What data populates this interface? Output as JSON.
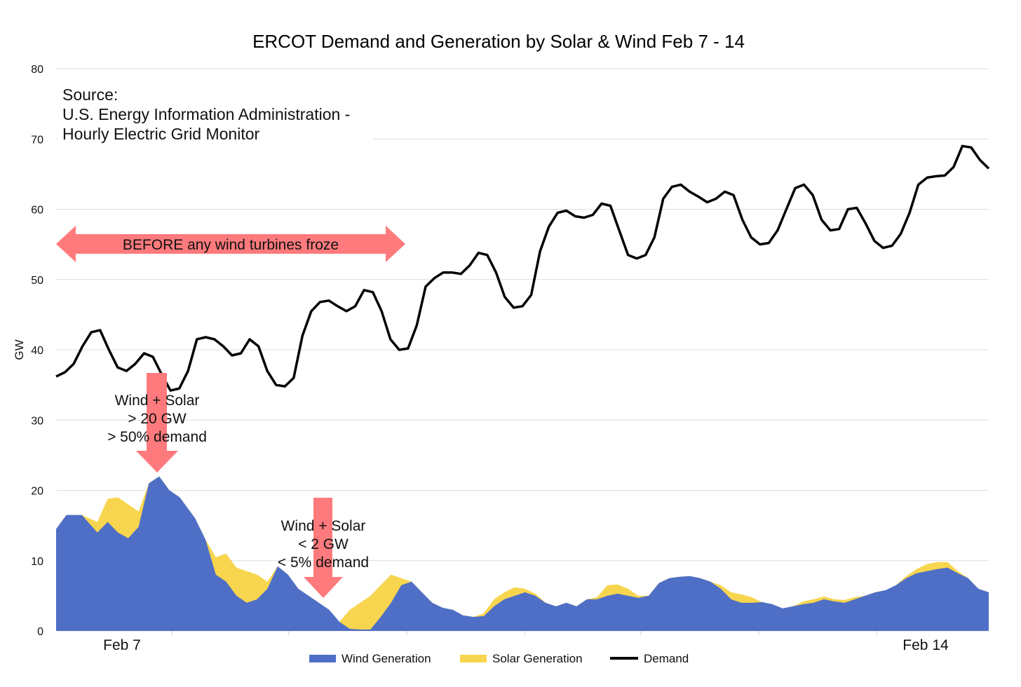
{
  "colors": {
    "wind": "#4F6FC6",
    "solar": "#F7D54E",
    "demand": "#000000",
    "arrow": "#FF7A7D",
    "grid": "#DCDCDC"
  },
  "chart_data": {
    "type": "area",
    "title": "ERCOT Demand and Generation by Solar & Wind Feb 7 - 14",
    "xlabel": "",
    "ylabel": "GW",
    "ylim": [
      0,
      80
    ],
    "yticks": [
      0,
      10,
      20,
      30,
      40,
      50,
      60,
      70,
      80
    ],
    "grid": true,
    "legend_position": "bottom",
    "x_tick_labels": [
      {
        "label": "Feb 7",
        "hour": 10
      },
      {
        "label": "Feb 14",
        "hour": 143
      }
    ],
    "x_hours": [
      0,
      159
    ],
    "series": [
      {
        "name": "Wind Generation",
        "kind": "area",
        "points": [
          [
            0,
            14.5
          ],
          [
            2,
            16.5
          ],
          [
            5,
            16.5
          ],
          [
            8,
            14
          ],
          [
            10,
            15.5
          ],
          [
            12,
            14
          ],
          [
            14,
            13.2
          ],
          [
            16,
            14.8
          ],
          [
            18,
            21
          ],
          [
            20,
            22
          ],
          [
            22,
            20
          ],
          [
            24,
            19
          ],
          [
            27,
            16
          ],
          [
            29,
            13
          ],
          [
            31,
            8
          ],
          [
            33,
            7
          ],
          [
            35,
            5
          ],
          [
            37,
            4
          ],
          [
            39,
            4.5
          ],
          [
            41,
            6
          ],
          [
            43,
            9.2
          ],
          [
            45,
            8
          ],
          [
            47,
            6
          ],
          [
            49,
            5
          ],
          [
            51,
            4
          ],
          [
            53,
            3
          ],
          [
            55,
            1.3
          ],
          [
            57,
            0.3
          ],
          [
            59,
            0.2
          ],
          [
            61,
            0.2
          ],
          [
            63,
            2
          ],
          [
            65,
            4
          ],
          [
            67,
            6.5
          ],
          [
            69,
            7
          ],
          [
            71,
            5.5
          ],
          [
            73,
            4
          ],
          [
            75,
            3.3
          ],
          [
            77,
            3
          ],
          [
            79,
            2.2
          ],
          [
            81,
            2
          ],
          [
            83,
            2.1
          ],
          [
            85,
            3.5
          ],
          [
            87,
            4.5
          ],
          [
            89,
            5
          ],
          [
            91,
            5.5
          ],
          [
            93,
            5
          ],
          [
            95,
            4
          ],
          [
            97,
            3.5
          ],
          [
            99,
            4
          ],
          [
            101,
            3.5
          ],
          [
            103,
            4.5
          ],
          [
            105,
            4.5
          ],
          [
            107,
            5
          ],
          [
            109,
            5.3
          ],
          [
            111,
            5
          ],
          [
            113,
            4.7
          ],
          [
            115,
            5
          ],
          [
            117,
            6.8
          ],
          [
            119,
            7.5
          ],
          [
            121,
            7.7
          ],
          [
            123,
            7.8
          ],
          [
            125,
            7.5
          ],
          [
            127,
            7
          ],
          [
            129,
            6
          ],
          [
            131,
            4.5
          ],
          [
            133,
            4
          ],
          [
            135,
            4
          ],
          [
            137,
            4.1
          ],
          [
            139,
            3.8
          ],
          [
            141,
            3.2
          ],
          [
            143,
            3.5
          ],
          [
            145,
            3.8
          ],
          [
            147,
            4
          ],
          [
            149,
            4.5
          ],
          [
            151,
            4.2
          ],
          [
            153,
            4
          ],
          [
            155,
            4.5
          ],
          [
            157,
            5
          ],
          [
            159,
            5.5
          ],
          [
            161,
            5.8
          ],
          [
            163,
            6.5
          ],
          [
            165,
            7.5
          ],
          [
            167,
            8.2
          ],
          [
            169,
            8.5
          ],
          [
            171,
            8.8
          ],
          [
            173,
            9
          ],
          [
            175,
            8.2
          ],
          [
            177,
            7.5
          ],
          [
            179,
            6
          ],
          [
            181,
            5.5
          ]
        ],
        "note_x_unit": "hours from start, scaled to plot width"
      },
      {
        "name": "Solar Generation",
        "kind": "area",
        "points": [
          [
            0,
            14.5
          ],
          [
            2,
            16.5
          ],
          [
            5,
            16.5
          ],
          [
            8,
            15.5
          ],
          [
            10,
            18.8
          ],
          [
            12,
            19
          ],
          [
            14,
            18
          ],
          [
            16,
            17
          ],
          [
            18,
            21
          ],
          [
            20,
            22
          ],
          [
            22,
            20
          ],
          [
            24,
            19
          ],
          [
            27,
            16
          ],
          [
            29,
            13
          ],
          [
            31,
            10.5
          ],
          [
            33,
            11
          ],
          [
            35,
            9
          ],
          [
            37,
            8.5
          ],
          [
            39,
            8
          ],
          [
            41,
            7
          ],
          [
            43,
            9.2
          ],
          [
            45,
            8
          ],
          [
            47,
            6
          ],
          [
            49,
            5
          ],
          [
            51,
            4
          ],
          [
            53,
            3
          ],
          [
            55,
            1.3
          ],
          [
            57,
            3
          ],
          [
            59,
            4
          ],
          [
            61,
            5
          ],
          [
            63,
            6.5
          ],
          [
            65,
            8
          ],
          [
            67,
            7.5
          ],
          [
            69,
            7
          ],
          [
            71,
            5.5
          ],
          [
            73,
            4
          ],
          [
            75,
            3.3
          ],
          [
            77,
            3
          ],
          [
            79,
            2.2
          ],
          [
            81,
            2
          ],
          [
            83,
            2.5
          ],
          [
            85,
            4.5
          ],
          [
            87,
            5.5
          ],
          [
            89,
            6.2
          ],
          [
            91,
            6
          ],
          [
            93,
            5.3
          ],
          [
            95,
            4
          ],
          [
            97,
            3.5
          ],
          [
            99,
            4
          ],
          [
            101,
            3.5
          ],
          [
            103,
            4.5
          ],
          [
            105,
            4.8
          ],
          [
            107,
            6.5
          ],
          [
            109,
            6.6
          ],
          [
            111,
            6
          ],
          [
            113,
            5
          ],
          [
            115,
            5
          ],
          [
            117,
            6.8
          ],
          [
            119,
            7.5
          ],
          [
            121,
            7.7
          ],
          [
            123,
            7.8
          ],
          [
            125,
            7.5
          ],
          [
            127,
            7
          ],
          [
            129,
            6.5
          ],
          [
            131,
            5.5
          ],
          [
            133,
            5.2
          ],
          [
            135,
            4.8
          ],
          [
            137,
            4.1
          ],
          [
            139,
            3.8
          ],
          [
            141,
            3.2
          ],
          [
            143,
            3.5
          ],
          [
            145,
            4.2
          ],
          [
            147,
            4.5
          ],
          [
            149,
            4.9
          ],
          [
            151,
            4.5
          ],
          [
            153,
            4.4
          ],
          [
            155,
            4.8
          ],
          [
            157,
            5
          ],
          [
            159,
            5.5
          ],
          [
            161,
            5.8
          ],
          [
            163,
            6.5
          ],
          [
            165,
            7.8
          ],
          [
            167,
            8.8
          ],
          [
            169,
            9.5
          ],
          [
            171,
            9.8
          ],
          [
            173,
            9.8
          ],
          [
            175,
            8.5
          ],
          [
            177,
            7.5
          ],
          [
            179,
            6
          ],
          [
            181,
            5.5
          ]
        ]
      },
      {
        "name": "Demand",
        "kind": "line",
        "points": [
          [
            0,
            36.2
          ],
          [
            2,
            36.8
          ],
          [
            4,
            38
          ],
          [
            6,
            40.5
          ],
          [
            8,
            42.5
          ],
          [
            10,
            42.8
          ],
          [
            12,
            40
          ],
          [
            14,
            37.5
          ],
          [
            16,
            37
          ],
          [
            18,
            38
          ],
          [
            20,
            39.5
          ],
          [
            22,
            39
          ],
          [
            24,
            36.5
          ],
          [
            26,
            34.2
          ],
          [
            28,
            34.5
          ],
          [
            30,
            37
          ],
          [
            32,
            41.5
          ],
          [
            34,
            41.8
          ],
          [
            36,
            41.5
          ],
          [
            38,
            40.5
          ],
          [
            40,
            39.2
          ],
          [
            42,
            39.5
          ],
          [
            44,
            41.5
          ],
          [
            46,
            40.5
          ],
          [
            48,
            37
          ],
          [
            50,
            35
          ],
          [
            52,
            34.8
          ],
          [
            54,
            36
          ],
          [
            56,
            42
          ],
          [
            58,
            45.5
          ],
          [
            60,
            46.8
          ],
          [
            62,
            47
          ],
          [
            64,
            46.2
          ],
          [
            66,
            45.5
          ],
          [
            68,
            46.2
          ],
          [
            70,
            48.5
          ],
          [
            72,
            48.2
          ],
          [
            74,
            45.5
          ],
          [
            76,
            41.5
          ],
          [
            78,
            40
          ],
          [
            80,
            40.2
          ],
          [
            82,
            43.5
          ],
          [
            84,
            49
          ],
          [
            86,
            50.2
          ],
          [
            88,
            51
          ],
          [
            90,
            51
          ],
          [
            92,
            50.8
          ],
          [
            94,
            52
          ],
          [
            96,
            53.8
          ],
          [
            98,
            53.5
          ],
          [
            100,
            51
          ],
          [
            102,
            47.5
          ],
          [
            104,
            46
          ],
          [
            106,
            46.2
          ],
          [
            108,
            47.8
          ],
          [
            110,
            54
          ],
          [
            112,
            57.5
          ],
          [
            114,
            59.5
          ],
          [
            116,
            59.8
          ],
          [
            118,
            59
          ],
          [
            120,
            58.8
          ],
          [
            122,
            59.2
          ],
          [
            124,
            60.8
          ],
          [
            126,
            60.5
          ],
          [
            128,
            57
          ],
          [
            130,
            53.5
          ],
          [
            132,
            53
          ],
          [
            134,
            53.5
          ],
          [
            136,
            56
          ],
          [
            138,
            61.5
          ],
          [
            140,
            63.2
          ],
          [
            142,
            63.5
          ],
          [
            144,
            62.5
          ],
          [
            146,
            61.8
          ],
          [
            148,
            61
          ],
          [
            150,
            61.5
          ],
          [
            152,
            62.5
          ],
          [
            154,
            62
          ],
          [
            156,
            58.5
          ],
          [
            158,
            56
          ],
          [
            160,
            55
          ],
          [
            162,
            55.2
          ],
          [
            164,
            57
          ],
          [
            166,
            60
          ],
          [
            168,
            63
          ],
          [
            170,
            63.5
          ],
          [
            172,
            62
          ],
          [
            174,
            58.5
          ],
          [
            176,
            57
          ],
          [
            178,
            57.2
          ],
          [
            180,
            60
          ],
          [
            182,
            60.2
          ],
          [
            184,
            58
          ],
          [
            186,
            55.5
          ],
          [
            188,
            54.5
          ],
          [
            190,
            54.8
          ],
          [
            192,
            56.5
          ],
          [
            194,
            59.5
          ],
          [
            196,
            63.5
          ],
          [
            198,
            64.5
          ],
          [
            200,
            64.7
          ],
          [
            202,
            64.8
          ],
          [
            204,
            66
          ],
          [
            206,
            69
          ],
          [
            208,
            68.8
          ],
          [
            210,
            67
          ],
          [
            212,
            65.8
          ]
        ]
      }
    ],
    "annotations": [
      {
        "text": "BEFORE any wind turbines froze"
      },
      {
        "lines": [
          "Wind + Solar",
          "> 20 GW",
          "> 50% demand"
        ]
      },
      {
        "lines": [
          "Wind + Solar",
          "< 2 GW",
          "< 5% demand"
        ]
      },
      {
        "lines": [
          "Source:",
          "U.S. Energy Information Administration -",
          "Hourly Electric Grid Monitor"
        ]
      }
    ]
  }
}
